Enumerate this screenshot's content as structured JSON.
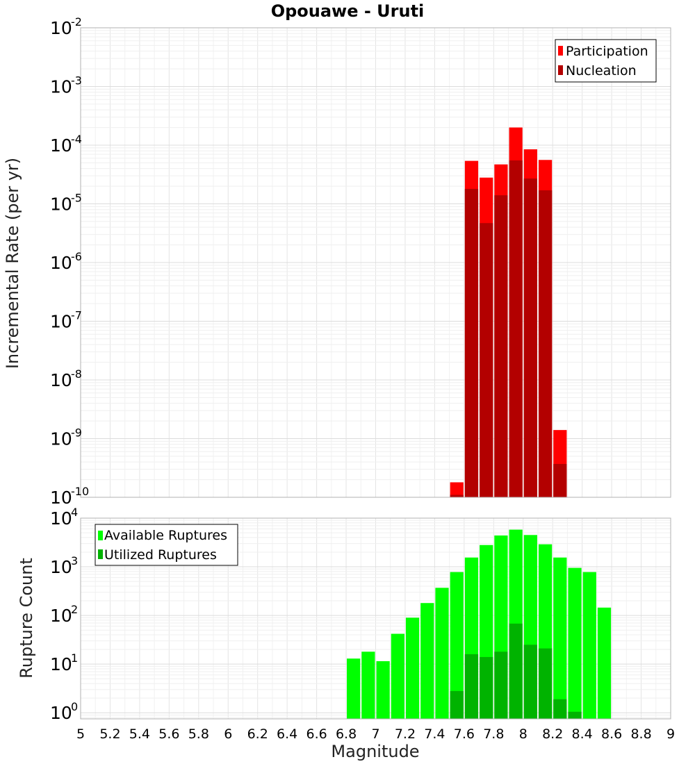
{
  "chart_data": [
    {
      "type": "bar",
      "title": "Opouawe - Uruti",
      "xlabel": "Magnitude",
      "ylabel": "Incremental Rate (per yr)",
      "yscale": "log",
      "xlim": [
        5,
        9
      ],
      "ylim": [
        1e-10,
        0.01
      ],
      "bin_width": 0.1,
      "y_ticks": [
        {
          "base": "10",
          "exp": "-10",
          "value": 1e-10
        },
        {
          "base": "10",
          "exp": "-9",
          "value": 1e-09
        },
        {
          "base": "10",
          "exp": "-8",
          "value": 1e-08
        },
        {
          "base": "10",
          "exp": "-7",
          "value": 1e-07
        },
        {
          "base": "10",
          "exp": "-6",
          "value": 1e-06
        },
        {
          "base": "10",
          "exp": "-5",
          "value": 1e-05
        },
        {
          "base": "10",
          "exp": "-4",
          "value": 0.0001
        },
        {
          "base": "10",
          "exp": "-3",
          "value": 0.001
        },
        {
          "base": "10",
          "exp": "-2",
          "value": 0.01
        }
      ],
      "legend": {
        "position": "top-right",
        "entries": [
          "Participation",
          "Nucleation"
        ]
      },
      "series": [
        {
          "name": "Participation",
          "color": "#ff0000",
          "x": [
            7.55,
            7.65,
            7.75,
            7.85,
            7.95,
            8.05,
            8.15,
            8.25
          ],
          "values": [
            1.8e-10,
            5.4e-05,
            2.8e-05,
            4.7e-05,
            0.0002,
            8.5e-05,
            5.6e-05,
            1.4e-09
          ]
        },
        {
          "name": "Nucleation",
          "color": "#b30000",
          "x": [
            7.55,
            7.65,
            7.75,
            7.85,
            7.95,
            8.05,
            8.15,
            8.25
          ],
          "values": [
            1.1e-10,
            1.8e-05,
            4.7e-06,
            1.4e-05,
            5.5e-05,
            2.7e-05,
            1.7e-05,
            3.7e-10
          ]
        }
      ]
    },
    {
      "type": "bar",
      "xlabel": "Magnitude",
      "ylabel": "Rupture Count",
      "yscale": "log",
      "xlim": [
        5,
        9
      ],
      "ylim": [
        0.75,
        10000
      ],
      "bin_width": 0.1,
      "y_ticks": [
        {
          "base": "10",
          "exp": "0",
          "value": 1
        },
        {
          "base": "10",
          "exp": "1",
          "value": 10
        },
        {
          "base": "10",
          "exp": "2",
          "value": 100
        },
        {
          "base": "10",
          "exp": "3",
          "value": 1000
        },
        {
          "base": "10",
          "exp": "4",
          "value": 10000
        }
      ],
      "x_ticks": [
        "5",
        "5.2",
        "5.4",
        "5.6",
        "5.8",
        "6",
        "6.2",
        "6.4",
        "6.6",
        "6.8",
        "7",
        "7.2",
        "7.4",
        "7.6",
        "7.8",
        "8",
        "8.2",
        "8.4",
        "8.6",
        "8.8",
        "9"
      ],
      "legend": {
        "position": "top-left",
        "entries": [
          "Available Ruptures",
          "Utilized Ruptures"
        ]
      },
      "series": [
        {
          "name": "Available Ruptures",
          "color": "#00ff00",
          "x": [
            6.85,
            6.95,
            7.05,
            7.15,
            7.25,
            7.35,
            7.45,
            7.55,
            7.65,
            7.75,
            7.85,
            7.95,
            8.05,
            8.15,
            8.25,
            8.35,
            8.45,
            8.55
          ],
          "values": [
            13,
            18,
            11.5,
            42,
            90,
            180,
            370,
            780,
            1550,
            2800,
            4400,
            5800,
            4500,
            2900,
            1550,
            950,
            780,
            145
          ]
        },
        {
          "name": "Utilized Ruptures",
          "color": "#00b300",
          "x": [
            7.55,
            7.65,
            7.75,
            7.85,
            7.95,
            8.05,
            8.15,
            8.25,
            8.35
          ],
          "values": [
            2.8,
            16,
            14,
            18,
            68,
            25,
            21,
            1.9,
            1.05
          ]
        }
      ]
    }
  ]
}
